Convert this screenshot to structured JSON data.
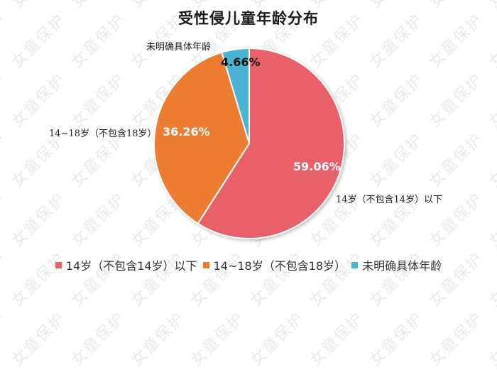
{
  "title": "受性侵儿童年龄分布",
  "watermark": "女童保护",
  "chart_data": {
    "type": "pie",
    "title": "受性侵儿童年龄分布",
    "categories": [
      "14岁（不包含14岁）以下",
      "14~18岁（不包含18岁）",
      "未明确具体年龄"
    ],
    "values": [
      59.06,
      36.26,
      4.66
    ],
    "value_labels": [
      "59.06%",
      "36.26%",
      "4.66%"
    ],
    "colors": [
      "#e8606a",
      "#ed7d31",
      "#4bb3d3"
    ],
    "start_angle": "12 o'clock, clockwise",
    "legend_position": "bottom"
  },
  "labels": {
    "slice0_value": "59.06%",
    "slice1_value": "36.26%",
    "slice2_value": "4.66%",
    "slice0_cat": "14岁（不包含14岁）以下",
    "slice1_cat": "14~18岁（不包含18岁）",
    "slice2_cat": "未明确具体年龄"
  },
  "legend": [
    {
      "label": "14岁（不包含14岁）以下",
      "color": "#e8606a"
    },
    {
      "label": "14~18岁（不包含18岁）",
      "color": "#ed7d31"
    },
    {
      "label": "未明确具体年龄",
      "color": "#4bb3d3"
    }
  ]
}
